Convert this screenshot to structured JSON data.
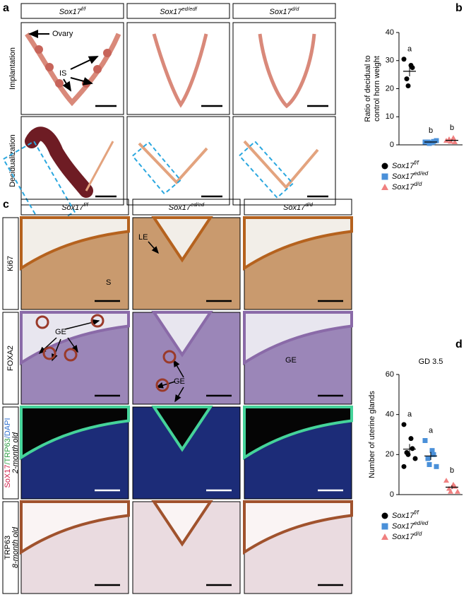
{
  "panel_a": {
    "label": "a",
    "columns": [
      {
        "gene": "Sox17",
        "genotype": "f/f"
      },
      {
        "gene": "Sox17",
        "genotype": "ed/edf"
      },
      {
        "gene": "Sox17",
        "genotype": "d/d"
      }
    ],
    "rows": [
      "Implantation",
      "Decidualization"
    ],
    "annotations": [
      "Ovary",
      "IS"
    ]
  },
  "panel_c": {
    "label": "c",
    "columns": [
      {
        "gene": "Sox17",
        "genotype": "f/f"
      },
      {
        "gene": "Sox17",
        "genotype": "ed/ed"
      },
      {
        "gene": "Sox17",
        "genotype": "d/d"
      }
    ],
    "rows": [
      "Ki67",
      "FOXA2",
      {
        "stains": [
          "SoX17",
          "/TRP63",
          "/DAPI"
        ],
        "age": "2-month old"
      },
      {
        "stains": [
          "TRP63"
        ],
        "age": "8-month old"
      }
    ],
    "annotations": [
      "S",
      "LE",
      "GE",
      "GE",
      "GE"
    ]
  },
  "chart_data": [
    {
      "type": "scatter",
      "label": "b",
      "ylabel": [
        "Ratio of decidual to",
        "control horn weight"
      ],
      "ylim": [
        0,
        40
      ],
      "yticks": [
        0,
        10,
        20,
        30,
        40
      ],
      "series": [
        {
          "name": "Sox17",
          "genotype": "f/f",
          "color": "#000000",
          "marker": "circle",
          "values": [
            30.5,
            28.3,
            27.5,
            23.5,
            21
          ],
          "mean": 26.2,
          "error": 1.8,
          "letter": "a"
        },
        {
          "name": "Sox17",
          "genotype": "ed/ed",
          "color": "#4a90d9",
          "marker": "square",
          "values": [
            1,
            0.8,
            1.2,
            1,
            0.5,
            1.5
          ],
          "mean": 1,
          "error": 0.15,
          "letter": "b"
        },
        {
          "name": "Sox17",
          "genotype": "d/d",
          "color": "#f08080",
          "marker": "triangle",
          "values": [
            1.5,
            2.5,
            1,
            2,
            1.2
          ],
          "mean": 1.6,
          "error": 0.3,
          "letter": "b"
        }
      ]
    },
    {
      "type": "scatter",
      "label": "d",
      "title": "GD 3.5",
      "ylabel": [
        "Number of uterine glands"
      ],
      "ylim": [
        0,
        60
      ],
      "yticks": [
        0,
        20,
        40,
        60
      ],
      "series": [
        {
          "name": "Sox17",
          "genotype": "f/f",
          "color": "#000000",
          "marker": "circle",
          "values": [
            35,
            28,
            23,
            21,
            20,
            18,
            14
          ],
          "mean": 22.7,
          "error": 2.6,
          "letter": "a"
        },
        {
          "name": "Sox17",
          "genotype": "ed/ed",
          "color": "#4a90d9",
          "marker": "square",
          "values": [
            27,
            22,
            20,
            18,
            15,
            14
          ],
          "mean": 19.3,
          "error": 2,
          "letter": "a"
        },
        {
          "name": "Sox17",
          "genotype": "d/d",
          "color": "#f08080",
          "marker": "triangle",
          "values": [
            7,
            5,
            4,
            3,
            1.5,
            1.5
          ],
          "mean": 3.7,
          "error": 0.9,
          "letter": "b"
        }
      ]
    }
  ]
}
